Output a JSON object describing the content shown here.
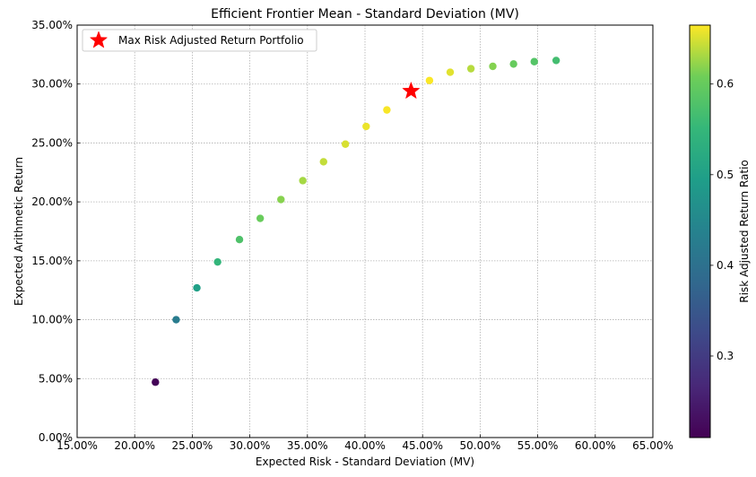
{
  "chart_data": {
    "type": "scatter",
    "title": "Efficient Frontier Mean - Standard Deviation (MV)",
    "xlabel": "Expected Risk - Standard Deviation (MV)",
    "ylabel": "Expected Arithmetic Return",
    "colorbar_label": "Risk Adjusted Return Ratio",
    "colormap": "viridis",
    "xlim": [
      0.15,
      0.65
    ],
    "ylim": [
      0.0,
      0.35
    ],
    "x_ticks": [
      {
        "value": 0.15,
        "label": "15.00%"
      },
      {
        "value": 0.2,
        "label": "20.00%"
      },
      {
        "value": 0.25,
        "label": "25.00%"
      },
      {
        "value": 0.3,
        "label": "30.00%"
      },
      {
        "value": 0.35,
        "label": "35.00%"
      },
      {
        "value": 0.4,
        "label": "40.00%"
      },
      {
        "value": 0.45,
        "label": "45.00%"
      },
      {
        "value": 0.5,
        "label": "50.00%"
      },
      {
        "value": 0.55,
        "label": "55.00%"
      },
      {
        "value": 0.6,
        "label": "60.00%"
      },
      {
        "value": 0.65,
        "label": "65.00%"
      }
    ],
    "y_ticks": [
      {
        "value": 0.0,
        "label": "0.00%"
      },
      {
        "value": 0.05,
        "label": "5.00%"
      },
      {
        "value": 0.1,
        "label": "10.00%"
      },
      {
        "value": 0.15,
        "label": "15.00%"
      },
      {
        "value": 0.2,
        "label": "20.00%"
      },
      {
        "value": 0.25,
        "label": "25.00%"
      },
      {
        "value": 0.3,
        "label": "30.00%"
      },
      {
        "value": 0.35,
        "label": "35.00%"
      }
    ],
    "colorbar_range": [
      0.21,
      0.665
    ],
    "colorbar_ticks": [
      {
        "value": 0.3,
        "label": "0.3"
      },
      {
        "value": 0.4,
        "label": "0.4"
      },
      {
        "value": 0.5,
        "label": "0.5"
      },
      {
        "value": 0.6,
        "label": "0.6"
      }
    ],
    "grid": true,
    "legend_placement": "top-left",
    "points": [
      {
        "x": 0.218,
        "y": 0.047,
        "ratio": 0.215
      },
      {
        "x": 0.236,
        "y": 0.1,
        "ratio": 0.424
      },
      {
        "x": 0.254,
        "y": 0.127,
        "ratio": 0.5
      },
      {
        "x": 0.272,
        "y": 0.149,
        "ratio": 0.547
      },
      {
        "x": 0.291,
        "y": 0.168,
        "ratio": 0.577
      },
      {
        "x": 0.309,
        "y": 0.186,
        "ratio": 0.602
      },
      {
        "x": 0.327,
        "y": 0.202,
        "ratio": 0.618
      },
      {
        "x": 0.346,
        "y": 0.218,
        "ratio": 0.63
      },
      {
        "x": 0.364,
        "y": 0.234,
        "ratio": 0.642
      },
      {
        "x": 0.383,
        "y": 0.249,
        "ratio": 0.65
      },
      {
        "x": 0.401,
        "y": 0.264,
        "ratio": 0.658
      },
      {
        "x": 0.419,
        "y": 0.278,
        "ratio": 0.663
      },
      {
        "x": 0.456,
        "y": 0.303,
        "ratio": 0.664
      },
      {
        "x": 0.474,
        "y": 0.31,
        "ratio": 0.654
      },
      {
        "x": 0.492,
        "y": 0.313,
        "ratio": 0.637
      },
      {
        "x": 0.511,
        "y": 0.315,
        "ratio": 0.617
      },
      {
        "x": 0.529,
        "y": 0.317,
        "ratio": 0.6
      },
      {
        "x": 0.547,
        "y": 0.319,
        "ratio": 0.583
      },
      {
        "x": 0.566,
        "y": 0.32,
        "ratio": 0.566
      }
    ],
    "highlight": {
      "name": "Max Risk Adjusted Return Portfolio",
      "x": 0.44,
      "y": 0.294,
      "color": "#ff0000",
      "marker": "star"
    }
  }
}
